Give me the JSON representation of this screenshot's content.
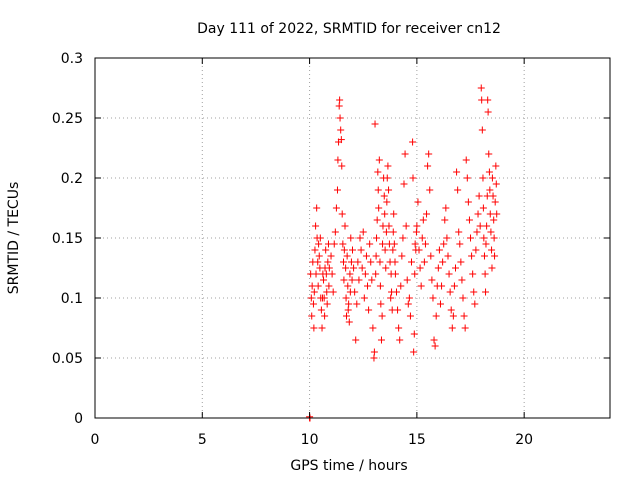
{
  "chart_data": {
    "type": "scatter",
    "title": "Day 111 of 2022, SRMTID for receiver cn12",
    "xlabel": "GPS time / hours",
    "ylabel": "SRMTID / TECUs",
    "xlim": [
      0,
      24
    ],
    "ylim": [
      0,
      0.3
    ],
    "xticks": [
      0,
      5,
      10,
      15,
      20
    ],
    "xtick_labels": [
      "0",
      "5",
      "10",
      "15",
      "20"
    ],
    "yticks": [
      0,
      0.05,
      0.1,
      0.15,
      0.2,
      0.25,
      0.3
    ],
    "ytick_labels": [
      "0",
      "0.05",
      "0.1",
      "0.15",
      "0.2",
      "0.25",
      "0.3"
    ],
    "grid": true,
    "marker": "plus",
    "color": "#ff0000",
    "series": [
      {
        "name": "SRMTID",
        "points": [
          [
            10.0,
            0.0
          ],
          [
            10.0,
            0.001
          ],
          [
            10.02,
            0.0
          ],
          [
            10.05,
            0.12
          ],
          [
            10.08,
            0.1
          ],
          [
            10.1,
            0.085
          ],
          [
            10.12,
            0.11
          ],
          [
            10.15,
            0.13
          ],
          [
            10.18,
            0.095
          ],
          [
            10.2,
            0.075
          ],
          [
            10.22,
            0.105
          ],
          [
            10.25,
            0.14
          ],
          [
            10.28,
            0.16
          ],
          [
            10.3,
            0.12
          ],
          [
            10.33,
            0.175
          ],
          [
            10.35,
            0.15
          ],
          [
            10.38,
            0.13
          ],
          [
            10.4,
            0.11
          ],
          [
            10.42,
            0.145
          ],
          [
            10.45,
            0.135
          ],
          [
            10.48,
            0.125
          ],
          [
            10.5,
            0.15
          ],
          [
            10.52,
            0.1
          ],
          [
            10.55,
            0.09
          ],
          [
            10.58,
            0.075
          ],
          [
            10.6,
            0.1
          ],
          [
            10.62,
            0.12
          ],
          [
            10.65,
            0.115
          ],
          [
            10.68,
            0.1
          ],
          [
            10.7,
            0.085
          ],
          [
            10.72,
            0.125
          ],
          [
            10.75,
            0.14
          ],
          [
            10.78,
            0.12
          ],
          [
            10.8,
            0.105
          ],
          [
            10.82,
            0.095
          ],
          [
            10.85,
            0.13
          ],
          [
            10.88,
            0.145
          ],
          [
            10.9,
            0.11
          ],
          [
            10.92,
            0.125
          ],
          [
            11.0,
            0.135
          ],
          [
            11.05,
            0.12
          ],
          [
            11.1,
            0.105
          ],
          [
            11.15,
            0.145
          ],
          [
            11.2,
            0.155
          ],
          [
            11.25,
            0.175
          ],
          [
            11.3,
            0.19
          ],
          [
            11.32,
            0.215
          ],
          [
            11.35,
            0.23
          ],
          [
            11.38,
            0.26
          ],
          [
            11.4,
            0.265
          ],
          [
            11.42,
            0.25
          ],
          [
            11.45,
            0.24
          ],
          [
            11.48,
            0.232
          ],
          [
            11.5,
            0.21
          ],
          [
            11.52,
            0.17
          ],
          [
            11.55,
            0.145
          ],
          [
            11.58,
            0.13
          ],
          [
            11.6,
            0.115
          ],
          [
            11.62,
            0.14
          ],
          [
            11.65,
            0.16
          ],
          [
            11.68,
            0.125
          ],
          [
            11.7,
            0.1
          ],
          [
            11.72,
            0.085
          ],
          [
            11.75,
            0.135
          ],
          [
            11.78,
            0.11
          ],
          [
            11.8,
            0.09
          ],
          [
            11.82,
            0.095
          ],
          [
            11.85,
            0.08
          ],
          [
            11.88,
            0.12
          ],
          [
            11.9,
            0.105
          ],
          [
            11.92,
            0.15
          ],
          [
            11.95,
            0.13
          ],
          [
            11.98,
            0.115
          ],
          [
            12.0,
            0.14
          ],
          [
            12.05,
            0.125
          ],
          [
            12.1,
            0.105
          ],
          [
            12.15,
            0.065
          ],
          [
            12.2,
            0.095
          ],
          [
            12.25,
            0.13
          ],
          [
            12.3,
            0.115
          ],
          [
            12.35,
            0.15
          ],
          [
            12.4,
            0.14
          ],
          [
            12.45,
            0.125
          ],
          [
            12.5,
            0.155
          ],
          [
            12.55,
            0.1
          ],
          [
            12.6,
            0.12
          ],
          [
            12.65,
            0.135
          ],
          [
            12.7,
            0.11
          ],
          [
            12.75,
            0.09
          ],
          [
            12.8,
            0.145
          ],
          [
            12.85,
            0.13
          ],
          [
            12.9,
            0.115
          ],
          [
            12.95,
            0.075
          ],
          [
            13.0,
            0.05
          ],
          [
            13.02,
            0.055
          ],
          [
            13.05,
            0.245
          ],
          [
            13.08,
            0.12
          ],
          [
            13.1,
            0.135
          ],
          [
            13.12,
            0.15
          ],
          [
            13.15,
            0.165
          ],
          [
            13.18,
            0.205
          ],
          [
            13.2,
            0.19
          ],
          [
            13.22,
            0.175
          ],
          [
            13.25,
            0.215
          ],
          [
            13.28,
            0.13
          ],
          [
            13.3,
            0.11
          ],
          [
            13.32,
            0.095
          ],
          [
            13.35,
            0.065
          ],
          [
            13.38,
            0.085
          ],
          [
            13.4,
            0.145
          ],
          [
            13.42,
            0.16
          ],
          [
            13.45,
            0.2
          ],
          [
            13.48,
            0.185
          ],
          [
            13.5,
            0.17
          ],
          [
            13.52,
            0.14
          ],
          [
            13.55,
            0.125
          ],
          [
            13.58,
            0.155
          ],
          [
            13.6,
            0.18
          ],
          [
            13.62,
            0.2
          ],
          [
            13.65,
            0.21
          ],
          [
            13.68,
            0.19
          ],
          [
            13.7,
            0.16
          ],
          [
            13.72,
            0.145
          ],
          [
            13.75,
            0.13
          ],
          [
            13.78,
            0.1
          ],
          [
            13.8,
            0.12
          ],
          [
            13.82,
            0.105
          ],
          [
            13.85,
            0.09
          ],
          [
            13.88,
            0.14
          ],
          [
            13.9,
            0.155
          ],
          [
            13.92,
            0.17
          ],
          [
            13.95,
            0.145
          ],
          [
            13.98,
            0.13
          ],
          [
            14.0,
            0.12
          ],
          [
            14.05,
            0.105
          ],
          [
            14.1,
            0.09
          ],
          [
            14.15,
            0.075
          ],
          [
            14.2,
            0.065
          ],
          [
            14.25,
            0.11
          ],
          [
            14.3,
            0.135
          ],
          [
            14.35,
            0.15
          ],
          [
            14.4,
            0.195
          ],
          [
            14.45,
            0.22
          ],
          [
            14.5,
            0.16
          ],
          [
            14.55,
            0.115
          ],
          [
            14.6,
            0.095
          ],
          [
            14.65,
            0.1
          ],
          [
            14.7,
            0.085
          ],
          [
            14.75,
            0.13
          ],
          [
            14.8,
            0.23
          ],
          [
            14.82,
            0.2
          ],
          [
            14.85,
            0.055
          ],
          [
            14.88,
            0.07
          ],
          [
            14.9,
            0.12
          ],
          [
            14.92,
            0.145
          ],
          [
            14.95,
            0.14
          ],
          [
            14.98,
            0.155
          ],
          [
            15.0,
            0.16
          ],
          [
            15.05,
            0.18
          ],
          [
            15.1,
            0.14
          ],
          [
            15.15,
            0.125
          ],
          [
            15.2,
            0.11
          ],
          [
            15.25,
            0.15
          ],
          [
            15.3,
            0.165
          ],
          [
            15.35,
            0.13
          ],
          [
            15.4,
            0.145
          ],
          [
            15.45,
            0.17
          ],
          [
            15.5,
            0.21
          ],
          [
            15.55,
            0.22
          ],
          [
            15.6,
            0.19
          ],
          [
            15.65,
            0.135
          ],
          [
            15.7,
            0.115
          ],
          [
            15.75,
            0.1
          ],
          [
            15.8,
            0.065
          ],
          [
            15.85,
            0.06
          ],
          [
            15.9,
            0.085
          ],
          [
            15.95,
            0.11
          ],
          [
            16.0,
            0.125
          ],
          [
            16.05,
            0.14
          ],
          [
            16.1,
            0.095
          ],
          [
            16.15,
            0.11
          ],
          [
            16.2,
            0.13
          ],
          [
            16.25,
            0.145
          ],
          [
            16.3,
            0.165
          ],
          [
            16.35,
            0.175
          ],
          [
            16.4,
            0.15
          ],
          [
            16.45,
            0.135
          ],
          [
            16.5,
            0.12
          ],
          [
            16.55,
            0.105
          ],
          [
            16.6,
            0.09
          ],
          [
            16.65,
            0.075
          ],
          [
            16.7,
            0.085
          ],
          [
            16.75,
            0.11
          ],
          [
            16.8,
            0.125
          ],
          [
            16.85,
            0.205
          ],
          [
            16.9,
            0.19
          ],
          [
            16.95,
            0.155
          ],
          [
            17.0,
            0.145
          ],
          [
            17.05,
            0.13
          ],
          [
            17.1,
            0.115
          ],
          [
            17.15,
            0.1
          ],
          [
            17.2,
            0.085
          ],
          [
            17.25,
            0.075
          ],
          [
            17.3,
            0.215
          ],
          [
            17.35,
            0.2
          ],
          [
            17.4,
            0.18
          ],
          [
            17.45,
            0.165
          ],
          [
            17.5,
            0.15
          ],
          [
            17.55,
            0.135
          ],
          [
            17.6,
            0.12
          ],
          [
            17.65,
            0.105
          ],
          [
            17.7,
            0.095
          ],
          [
            17.75,
            0.14
          ],
          [
            17.8,
            0.155
          ],
          [
            17.85,
            0.17
          ],
          [
            17.9,
            0.185
          ],
          [
            17.95,
            0.16
          ],
          [
            18.0,
            0.275
          ],
          [
            18.02,
            0.265
          ],
          [
            18.05,
            0.24
          ],
          [
            18.08,
            0.2
          ],
          [
            18.1,
            0.175
          ],
          [
            18.12,
            0.15
          ],
          [
            18.15,
            0.135
          ],
          [
            18.18,
            0.12
          ],
          [
            18.2,
            0.105
          ],
          [
            18.22,
            0.145
          ],
          [
            18.25,
            0.16
          ],
          [
            18.28,
            0.185
          ],
          [
            18.3,
            0.265
          ],
          [
            18.32,
            0.255
          ],
          [
            18.35,
            0.22
          ],
          [
            18.38,
            0.205
          ],
          [
            18.4,
            0.19
          ],
          [
            18.42,
            0.17
          ],
          [
            18.45,
            0.155
          ],
          [
            18.48,
            0.14
          ],
          [
            18.5,
            0.125
          ],
          [
            18.52,
            0.2
          ],
          [
            18.55,
            0.185
          ],
          [
            18.58,
            0.165
          ],
          [
            18.6,
            0.15
          ],
          [
            18.62,
            0.135
          ],
          [
            18.65,
            0.18
          ],
          [
            18.68,
            0.21
          ],
          [
            18.7,
            0.195
          ],
          [
            18.72,
            0.17
          ]
        ]
      }
    ]
  }
}
